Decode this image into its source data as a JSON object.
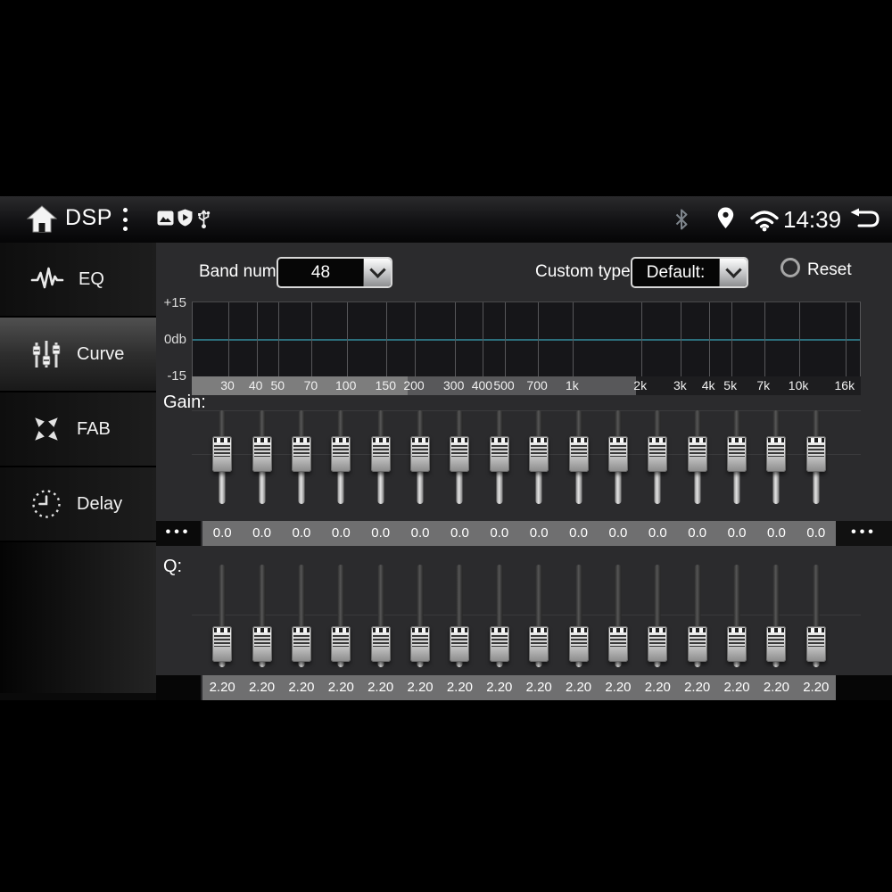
{
  "status_bar": {
    "title": "DSP",
    "time": "14:39",
    "icons": [
      "home-icon",
      "more-vertical-icon",
      "image-icon",
      "shield-icon",
      "usb-icon",
      "bluetooth-icon",
      "location-pin-icon",
      "wifi-icon",
      "back-icon"
    ]
  },
  "sidebar": {
    "items": [
      {
        "id": "eq",
        "label": "EQ",
        "icon": "waveform-icon",
        "active": false
      },
      {
        "id": "curve",
        "label": "Curve",
        "icon": "sliders-icon",
        "active": true
      },
      {
        "id": "fab",
        "label": "FAB",
        "icon": "fader-arrows-icon",
        "active": false
      },
      {
        "id": "delay",
        "label": "Delay",
        "icon": "clock-icon",
        "active": false
      }
    ]
  },
  "controls": {
    "band_num_label": "Band num:",
    "band_num_value": "48",
    "custom_type_label": "Custom type:",
    "custom_type_value": "Default:",
    "reset_label": "Reset"
  },
  "graph": {
    "y_axis_labels": [
      "+15",
      "0db",
      "-15"
    ],
    "curve_value_db": 0,
    "curve_color": "#2c6f7c",
    "freqs": [
      {
        "label": "30",
        "hz": 30
      },
      {
        "label": "40",
        "hz": 40
      },
      {
        "label": "50",
        "hz": 50
      },
      {
        "label": "70",
        "hz": 70
      },
      {
        "label": "100",
        "hz": 100
      },
      {
        "label": "150",
        "hz": 150
      },
      {
        "label": "200",
        "hz": 200
      },
      {
        "label": "300",
        "hz": 300
      },
      {
        "label": "400",
        "hz": 400
      },
      {
        "label": "500",
        "hz": 500
      },
      {
        "label": "700",
        "hz": 700
      },
      {
        "label": "1k",
        "hz": 1000
      },
      {
        "label": "2k",
        "hz": 2000
      },
      {
        "label": "3k",
        "hz": 3000
      },
      {
        "label": "4k",
        "hz": 4000
      },
      {
        "label": "5k",
        "hz": 5000
      },
      {
        "label": "7k",
        "hz": 7000
      },
      {
        "label": "10k",
        "hz": 10000
      },
      {
        "label": "16k",
        "hz": 16000
      }
    ]
  },
  "gain": {
    "label": "Gain:",
    "overflow_left": "•••",
    "overflow_right": "•••",
    "values": [
      "0.0",
      "0.0",
      "0.0",
      "0.0",
      "0.0",
      "0.0",
      "0.0",
      "0.0",
      "0.0",
      "0.0",
      "0.0",
      "0.0",
      "0.0",
      "0.0",
      "0.0",
      "0.0"
    ]
  },
  "q": {
    "label": "Q:",
    "values": [
      "2.20",
      "2.20",
      "2.20",
      "2.20",
      "2.20",
      "2.20",
      "2.20",
      "2.20",
      "2.20",
      "2.20",
      "2.20",
      "2.20",
      "2.20",
      "2.20",
      "2.20",
      "2.20"
    ]
  }
}
